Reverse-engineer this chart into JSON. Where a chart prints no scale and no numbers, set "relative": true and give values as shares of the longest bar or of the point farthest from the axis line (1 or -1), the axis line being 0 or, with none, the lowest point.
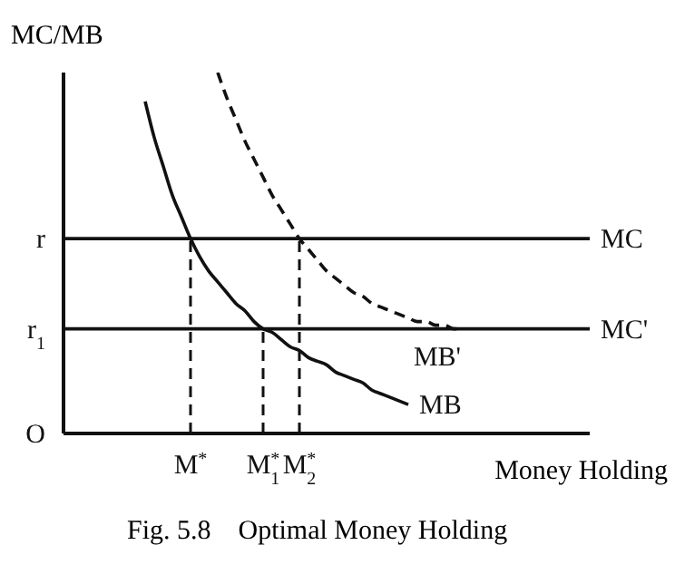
{
  "chart_data": {
    "type": "line",
    "relative": true,
    "ylabel": "MC/MB",
    "xlabel": "Money Holding",
    "categories": [
      null,
      null,
      null,
      null,
      null,
      null,
      null,
      null,
      null,
      null,
      null,
      null,
      null,
      null,
      "M$^{*}$",
      null,
      null,
      null,
      null,
      null,
      null,
      null,
      "M$^{*}$$_{1}$",
      null,
      null,
      null,
      "M$^{*}$$_{2}$",
      null,
      null,
      null,
      null,
      null,
      null,
      null,
      null,
      null,
      null,
      null,
      null,
      null,
      null,
      null,
      null,
      null,
      null,
      null,
      null,
      null,
      null,
      null,
      null,
      null,
      null,
      null,
      null,
      null,
      null,
      null,
      null
    ],
    "series": [
      {
        "name": "MC",
        "color": "#111111",
        "values": [
          0.54,
          0.54,
          0.54,
          0.54,
          0.54,
          0.54,
          0.54,
          0.54,
          0.54,
          0.54,
          0.54,
          0.54,
          0.54,
          0.54,
          0.54,
          0.54,
          0.54,
          0.54,
          0.54,
          0.54,
          0.54,
          0.54,
          0.54,
          0.54,
          0.54,
          0.54,
          0.54,
          0.54,
          0.54,
          0.54,
          0.54,
          0.54,
          0.54,
          0.54,
          0.54,
          0.54,
          0.54,
          0.54,
          0.54,
          0.54,
          0.54,
          0.54,
          0.54,
          0.54,
          0.54,
          0.54,
          0.54,
          0.54,
          0.54,
          0.54,
          0.54,
          0.54,
          0.54,
          0.54,
          0.54,
          0.54,
          0.54,
          0.54,
          0.54
        ]
      },
      {
        "name": "MC'",
        "color": "#111111",
        "values": [
          0.29,
          0.29,
          0.29,
          0.29,
          0.29,
          0.29,
          0.29,
          0.29,
          0.29,
          0.29,
          0.29,
          0.29,
          0.29,
          0.29,
          0.29,
          0.29,
          0.29,
          0.29,
          0.29,
          0.29,
          0.29,
          0.29,
          0.29,
          0.29,
          0.29,
          0.29,
          0.29,
          0.29,
          0.29,
          0.29,
          0.29,
          0.29,
          0.29,
          0.29,
          0.29,
          0.29,
          0.29,
          0.29,
          0.29,
          0.29,
          0.29,
          0.29,
          0.29,
          0.29,
          0.29,
          0.29,
          0.29,
          0.29,
          0.29,
          0.29,
          0.29,
          0.29,
          0.29,
          0.29,
          0.29,
          0.29,
          0.29,
          0.29,
          0.29
        ]
      },
      {
        "name": "MB",
        "color": "#111111",
        "values": [
          null,
          null,
          null,
          null,
          null,
          null,
          null,
          null,
          null,
          0.92,
          0.82,
          0.74,
          0.66,
          0.6,
          0.54,
          0.49,
          0.45,
          0.42,
          0.39,
          0.36,
          0.34,
          0.31,
          0.29,
          0.28,
          0.26,
          0.24,
          0.23,
          0.21,
          0.2,
          0.19,
          0.17,
          0.16,
          0.15,
          0.14,
          0.12,
          0.11,
          0.1,
          0.09,
          0.08,
          null,
          null,
          null,
          null,
          null,
          null,
          null,
          null,
          null,
          null,
          null,
          null,
          null,
          null,
          null,
          null,
          null,
          null,
          null,
          null
        ]
      },
      {
        "name": "MB'",
        "color": "#111111",
        "line_style": "dashed",
        "values": [
          null,
          null,
          null,
          null,
          null,
          null,
          null,
          null,
          null,
          null,
          null,
          null,
          null,
          null,
          null,
          null,
          null,
          1.0,
          0.93,
          0.87,
          0.81,
          0.76,
          0.71,
          0.66,
          0.62,
          0.58,
          0.54,
          0.51,
          0.48,
          0.45,
          0.43,
          0.41,
          0.39,
          0.38,
          0.36,
          0.35,
          0.34,
          0.33,
          0.32,
          0.31,
          0.31,
          0.3,
          0.3,
          0.29,
          0.29,
          null,
          null,
          null,
          null,
          null,
          null,
          null,
          null,
          null,
          null,
          null,
          null,
          null,
          null
        ]
      }
    ],
    "ref_lines": [
      {
        "axis": "x",
        "value": "M$^{*}$",
        "color": "#111111",
        "line_style": "dashed"
      },
      {
        "axis": "x",
        "value": "M$^{*}$$_{1}$",
        "color": "#111111",
        "line_style": "dashed"
      },
      {
        "axis": "x",
        "value": "M$^{*}$$_{2}$",
        "color": "#111111",
        "line_style": "dashed"
      }
    ],
    "annotations": [
      "r",
      "r$_{1}$",
      "O",
      "Fig. 5.8    Optimal Money Holding"
    ]
  }
}
